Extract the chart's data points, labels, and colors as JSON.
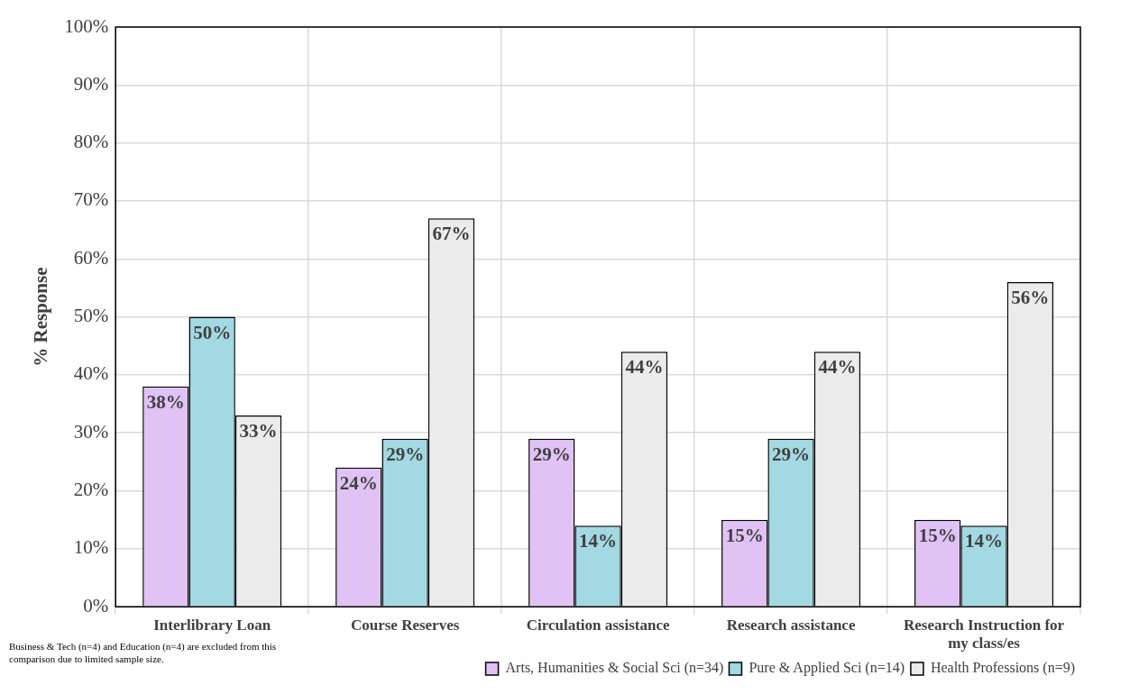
{
  "chart_data": {
    "type": "bar",
    "ylabel": "% Response",
    "categories": [
      "Interlibrary Loan",
      "Course Reserves",
      "Circulation assistance",
      "Research assistance",
      "Research Instruction for my class/es"
    ],
    "series": [
      {
        "name": "Arts, Humanities & Social Sci (n=34)",
        "color": "#e0c2f5",
        "values": [
          38,
          24,
          29,
          15,
          15
        ],
        "value_labels": [
          "38%",
          "24%",
          "29%",
          "15%",
          "15%"
        ]
      },
      {
        "name": "Pure & Applied Sci (n=14)",
        "color": "#a2d9e2",
        "values": [
          50,
          29,
          14,
          29,
          14
        ],
        "value_labels": [
          "50%",
          "29%",
          "14%",
          "29%",
          "14%"
        ]
      },
      {
        "name": "Health Professions (n=9)",
        "color": "#ebebeb",
        "values": [
          33,
          67,
          44,
          44,
          56
        ],
        "value_labels": [
          "33%",
          "67%",
          "44%",
          "44%",
          "56%"
        ]
      }
    ],
    "ylim": [
      0,
      100
    ],
    "yticks": [
      {
        "value": 0,
        "label": "0%"
      },
      {
        "value": 10,
        "label": "10%"
      },
      {
        "value": 20,
        "label": "20%"
      },
      {
        "value": 30,
        "label": "30%"
      },
      {
        "value": 40,
        "label": "40%"
      },
      {
        "value": 50,
        "label": "50%"
      },
      {
        "value": 60,
        "label": "60%"
      },
      {
        "value": 70,
        "label": "70%"
      },
      {
        "value": 80,
        "label": "80%"
      },
      {
        "value": 90,
        "label": "90%"
      },
      {
        "value": 100,
        "label": "100%"
      }
    ],
    "grid": true,
    "legend": "bottom",
    "annotations": [
      "Business & Tech (n=4) and Education (n=4) are excluded from this comparison due to limited sample size."
    ]
  }
}
